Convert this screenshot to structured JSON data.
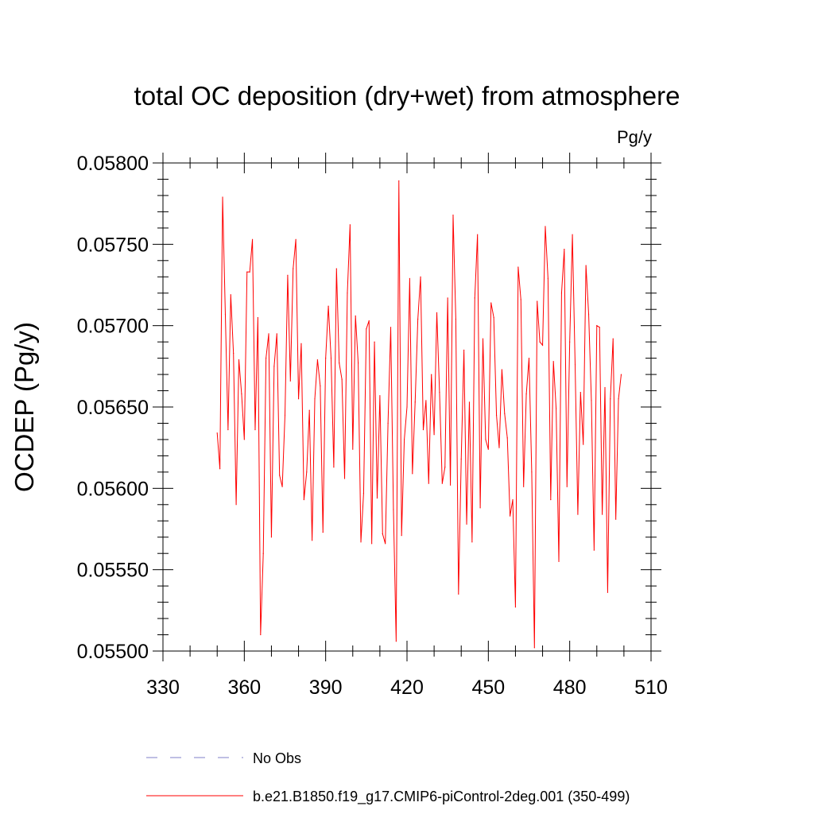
{
  "chart_data": {
    "type": "line",
    "title": "total OC deposition (dry+wet) from atmosphere",
    "units": "Pg/y",
    "ylabel": "OCDEP  (Pg/y)",
    "xlabel": "",
    "xlim": [
      330,
      510
    ],
    "ylim": [
      0.055,
      0.058
    ],
    "x_ticks": [
      "330",
      "360",
      "390",
      "420",
      "450",
      "480",
      "510"
    ],
    "y_ticks": [
      "0.05500",
      "0.05550",
      "0.05600",
      "0.05650",
      "0.05700",
      "0.05750",
      "0.05800"
    ],
    "grid": false,
    "legend_position": "bottom",
    "series": [
      {
        "name": "No Obs",
        "color": "#7f7fc8",
        "dash": "dashed",
        "x": [],
        "values": []
      },
      {
        "name": "b.e21.B1850.f19_g17.CMIP6-piControl-2deg.001 (350-499)",
        "color": "#ff0000",
        "dash": "solid",
        "x": [
          350,
          351,
          352,
          353,
          354,
          355,
          356,
          357,
          358,
          359,
          360,
          361,
          362,
          363,
          364,
          365,
          366,
          367,
          368,
          369,
          370,
          371,
          372,
          373,
          374,
          375,
          376,
          377,
          378,
          379,
          380,
          381,
          382,
          383,
          384,
          385,
          386,
          387,
          388,
          389,
          390,
          391,
          392,
          393,
          394,
          395,
          396,
          397,
          398,
          399,
          400,
          401,
          402,
          403,
          404,
          405,
          406,
          407,
          408,
          409,
          410,
          411,
          412,
          413,
          414,
          415,
          416,
          417,
          418,
          419,
          420,
          421,
          422,
          423,
          424,
          425,
          426,
          427,
          428,
          429,
          430,
          431,
          432,
          433,
          434,
          435,
          436,
          437,
          438,
          439,
          440,
          441,
          442,
          443,
          444,
          445,
          446,
          447,
          448,
          449,
          450,
          451,
          452,
          453,
          454,
          455,
          456,
          457,
          458,
          459,
          460,
          461,
          462,
          463,
          464,
          465,
          466,
          467,
          468,
          469,
          470,
          471,
          472,
          473,
          474,
          475,
          476,
          477,
          478,
          479,
          480,
          481,
          482,
          483,
          484,
          485,
          486,
          487,
          488,
          489,
          490,
          491,
          492,
          493,
          494,
          495,
          496,
          497,
          498,
          499
        ],
        "values": [
          0.05634,
          0.05612,
          0.05779,
          0.05707,
          0.05636,
          0.05719,
          0.05683,
          0.0559,
          0.05679,
          0.05658,
          0.0563,
          0.05733,
          0.05733,
          0.05753,
          0.05636,
          0.05705,
          0.0551,
          0.0556,
          0.0568,
          0.05695,
          0.0557,
          0.05675,
          0.05695,
          0.05608,
          0.05601,
          0.05645,
          0.05731,
          0.05666,
          0.05735,
          0.05753,
          0.05655,
          0.05689,
          0.05593,
          0.0561,
          0.05648,
          0.05568,
          0.05655,
          0.05679,
          0.05663,
          0.05573,
          0.0568,
          0.05712,
          0.0568,
          0.05613,
          0.05735,
          0.05677,
          0.05667,
          0.05606,
          0.0572,
          0.05762,
          0.05624,
          0.05706,
          0.05677,
          0.05567,
          0.05597,
          0.05698,
          0.05703,
          0.05566,
          0.0569,
          0.05594,
          0.05657,
          0.05572,
          0.05566,
          0.0564,
          0.05699,
          0.05587,
          0.05506,
          0.05789,
          0.05571,
          0.0563,
          0.0565,
          0.05729,
          0.05609,
          0.05653,
          0.05704,
          0.0573,
          0.05636,
          0.05654,
          0.05603,
          0.0567,
          0.05633,
          0.05708,
          0.05659,
          0.05603,
          0.05613,
          0.05717,
          0.05602,
          0.05768,
          0.05704,
          0.05535,
          0.05618,
          0.05685,
          0.05578,
          0.05653,
          0.05567,
          0.05717,
          0.05756,
          0.05588,
          0.05692,
          0.0563,
          0.05624,
          0.05714,
          0.05705,
          0.05645,
          0.05625,
          0.05673,
          0.05646,
          0.05631,
          0.05583,
          0.05593,
          0.05527,
          0.05736,
          0.05716,
          0.05601,
          0.05658,
          0.0568,
          0.0561,
          0.05502,
          0.05715,
          0.0569,
          0.05688,
          0.05761,
          0.05729,
          0.05593,
          0.05678,
          0.05649,
          0.05555,
          0.0572,
          0.05747,
          0.05601,
          0.0569,
          0.05756,
          0.05676,
          0.05584,
          0.05659,
          0.05627,
          0.05737,
          0.05707,
          0.05654,
          0.05562,
          0.057,
          0.05699,
          0.05584,
          0.05662,
          0.05536,
          0.05655,
          0.05692,
          0.05581,
          0.05655,
          0.0567
        ]
      }
    ]
  }
}
